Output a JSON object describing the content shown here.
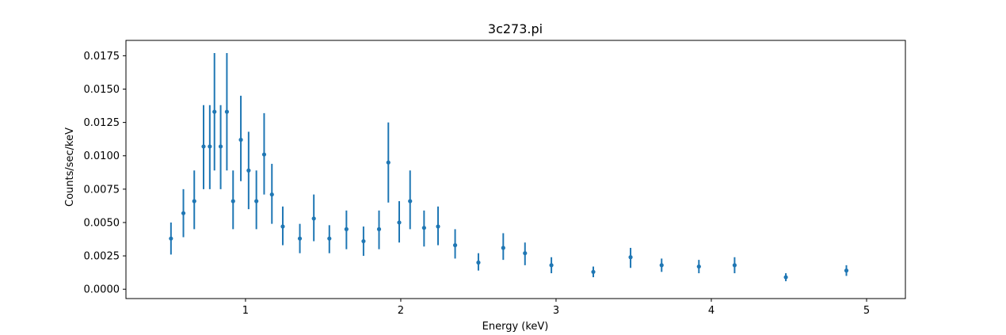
{
  "chart_data": {
    "type": "scatter",
    "title": "3c273.pi",
    "xlabel": "Energy (keV)",
    "ylabel": "Counts/sec/keV",
    "xlim": [
      0.23,
      5.25
    ],
    "ylim": [
      -0.0007,
      0.01865
    ],
    "xticks": [
      1,
      2,
      3,
      4,
      5
    ],
    "xtick_labels": [
      "1",
      "2",
      "3",
      "4",
      "5"
    ],
    "yticks": [
      0,
      0.0025,
      0.005,
      0.0075,
      0.01,
      0.0125,
      0.015,
      0.0175
    ],
    "ytick_labels": [
      "0.0000",
      "0.0025",
      "0.0050",
      "0.0075",
      "0.0100",
      "0.0125",
      "0.0150",
      "0.0175"
    ],
    "grid": false,
    "series_color": "#1f77b4",
    "points": [
      {
        "x": 0.52,
        "y": 0.0038,
        "lo": 0.0026,
        "hi": 0.005
      },
      {
        "x": 0.6,
        "y": 0.0057,
        "lo": 0.0039,
        "hi": 0.0075
      },
      {
        "x": 0.67,
        "y": 0.0066,
        "lo": 0.0045,
        "hi": 0.0089
      },
      {
        "x": 0.73,
        "y": 0.0107,
        "lo": 0.0075,
        "hi": 0.0138
      },
      {
        "x": 0.77,
        "y": 0.0107,
        "lo": 0.0075,
        "hi": 0.0138
      },
      {
        "x": 0.8,
        "y": 0.0133,
        "lo": 0.0089,
        "hi": 0.0177
      },
      {
        "x": 0.84,
        "y": 0.0107,
        "lo": 0.0075,
        "hi": 0.0138
      },
      {
        "x": 0.88,
        "y": 0.0133,
        "lo": 0.0089,
        "hi": 0.0177
      },
      {
        "x": 0.92,
        "y": 0.0066,
        "lo": 0.0045,
        "hi": 0.0089
      },
      {
        "x": 0.97,
        "y": 0.0112,
        "lo": 0.0081,
        "hi": 0.0145
      },
      {
        "x": 1.02,
        "y": 0.0089,
        "lo": 0.006,
        "hi": 0.0118
      },
      {
        "x": 1.07,
        "y": 0.0066,
        "lo": 0.0045,
        "hi": 0.0089
      },
      {
        "x": 1.12,
        "y": 0.0101,
        "lo": 0.0071,
        "hi": 0.0132
      },
      {
        "x": 1.17,
        "y": 0.0071,
        "lo": 0.0049,
        "hi": 0.0094
      },
      {
        "x": 1.24,
        "y": 0.0047,
        "lo": 0.0033,
        "hi": 0.0062
      },
      {
        "x": 1.35,
        "y": 0.0038,
        "lo": 0.0027,
        "hi": 0.0049
      },
      {
        "x": 1.44,
        "y": 0.0053,
        "lo": 0.0036,
        "hi": 0.0071
      },
      {
        "x": 1.54,
        "y": 0.0038,
        "lo": 0.0027,
        "hi": 0.0048
      },
      {
        "x": 1.65,
        "y": 0.0045,
        "lo": 0.003,
        "hi": 0.0059
      },
      {
        "x": 1.76,
        "y": 0.0036,
        "lo": 0.0025,
        "hi": 0.0047
      },
      {
        "x": 1.86,
        "y": 0.0045,
        "lo": 0.003,
        "hi": 0.0059
      },
      {
        "x": 1.92,
        "y": 0.0095,
        "lo": 0.0065,
        "hi": 0.0125
      },
      {
        "x": 1.99,
        "y": 0.005,
        "lo": 0.0035,
        "hi": 0.0066
      },
      {
        "x": 2.06,
        "y": 0.0066,
        "lo": 0.0045,
        "hi": 0.0089
      },
      {
        "x": 2.15,
        "y": 0.0046,
        "lo": 0.0032,
        "hi": 0.0059
      },
      {
        "x": 2.24,
        "y": 0.0047,
        "lo": 0.0033,
        "hi": 0.0062
      },
      {
        "x": 2.35,
        "y": 0.0033,
        "lo": 0.0023,
        "hi": 0.0045
      },
      {
        "x": 2.5,
        "y": 0.002,
        "lo": 0.0014,
        "hi": 0.0027
      },
      {
        "x": 2.66,
        "y": 0.0031,
        "lo": 0.0022,
        "hi": 0.0042
      },
      {
        "x": 2.8,
        "y": 0.0027,
        "lo": 0.0018,
        "hi": 0.0035
      },
      {
        "x": 2.97,
        "y": 0.0018,
        "lo": 0.0012,
        "hi": 0.0024
      },
      {
        "x": 3.24,
        "y": 0.0013,
        "lo": 0.0009,
        "hi": 0.0017
      },
      {
        "x": 3.48,
        "y": 0.0024,
        "lo": 0.0016,
        "hi": 0.0031
      },
      {
        "x": 3.68,
        "y": 0.0018,
        "lo": 0.0013,
        "hi": 0.0023
      },
      {
        "x": 3.92,
        "y": 0.0017,
        "lo": 0.0012,
        "hi": 0.0022
      },
      {
        "x": 4.15,
        "y": 0.0018,
        "lo": 0.0012,
        "hi": 0.0024
      },
      {
        "x": 4.48,
        "y": 0.0009,
        "lo": 0.0006,
        "hi": 0.0012
      },
      {
        "x": 4.87,
        "y": 0.0014,
        "lo": 0.001,
        "hi": 0.0018
      }
    ]
  }
}
